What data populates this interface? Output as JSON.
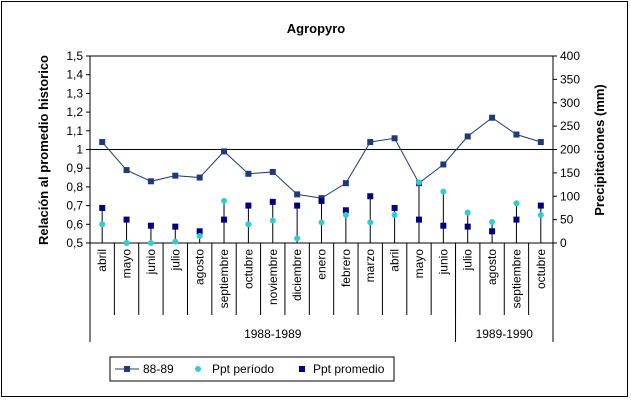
{
  "chart_data": {
    "type": "line",
    "title": "Agropyro",
    "ylabel": "Relación al promedio historico",
    "y2label": "Precipitaciones (mm)",
    "ylim": [
      0.5,
      1.5
    ],
    "y_ticks": [
      "0,5",
      "0,6",
      "0,7",
      "0,8",
      "0,9",
      "1",
      "1,1",
      "1,2",
      "1,3",
      "1,4",
      "1,5"
    ],
    "y2lim": [
      0,
      400
    ],
    "y2_ticks": [
      "0",
      "50",
      "100",
      "150",
      "200",
      "250",
      "300",
      "350",
      "400"
    ],
    "reference_line": 1,
    "categories": [
      "abril",
      "mayo",
      "junio",
      "julio",
      "agosto",
      "septiembre",
      "octubre",
      "noviembre",
      "diciembre",
      "enero",
      "febrero",
      "marzo",
      "abril",
      "mayo",
      "junio",
      "julio",
      "agosto",
      "septiembre",
      "octubre"
    ],
    "groups": [
      {
        "label": "1988-1989",
        "start": 0,
        "end": 14
      },
      {
        "label": "1989-1990",
        "start": 15,
        "end": 18
      }
    ],
    "series": [
      {
        "name": "88-89",
        "axis": "left",
        "color": "#1f3a7a",
        "values": [
          1.04,
          0.89,
          0.83,
          0.86,
          0.85,
          0.99,
          0.87,
          0.88,
          0.76,
          0.74,
          0.82,
          1.04,
          1.06,
          0.82,
          0.92,
          1.07,
          1.17,
          1.08,
          1.04
        ]
      },
      {
        "name": "Ppt período",
        "axis": "right",
        "color": "#33cccc",
        "values": [
          40,
          0,
          0,
          3,
          15,
          90,
          40,
          48,
          10,
          44,
          60,
          44,
          60,
          130,
          110,
          65,
          45,
          85,
          60
        ]
      },
      {
        "name": "Ppt promedio",
        "axis": "right",
        "color": "#000080",
        "values": [
          75,
          50,
          37,
          35,
          25,
          50,
          80,
          88,
          80,
          90,
          70,
          100,
          75,
          50,
          37,
          35,
          25,
          50,
          80
        ]
      }
    ],
    "legend_position": "bottom",
    "grid": false
  }
}
